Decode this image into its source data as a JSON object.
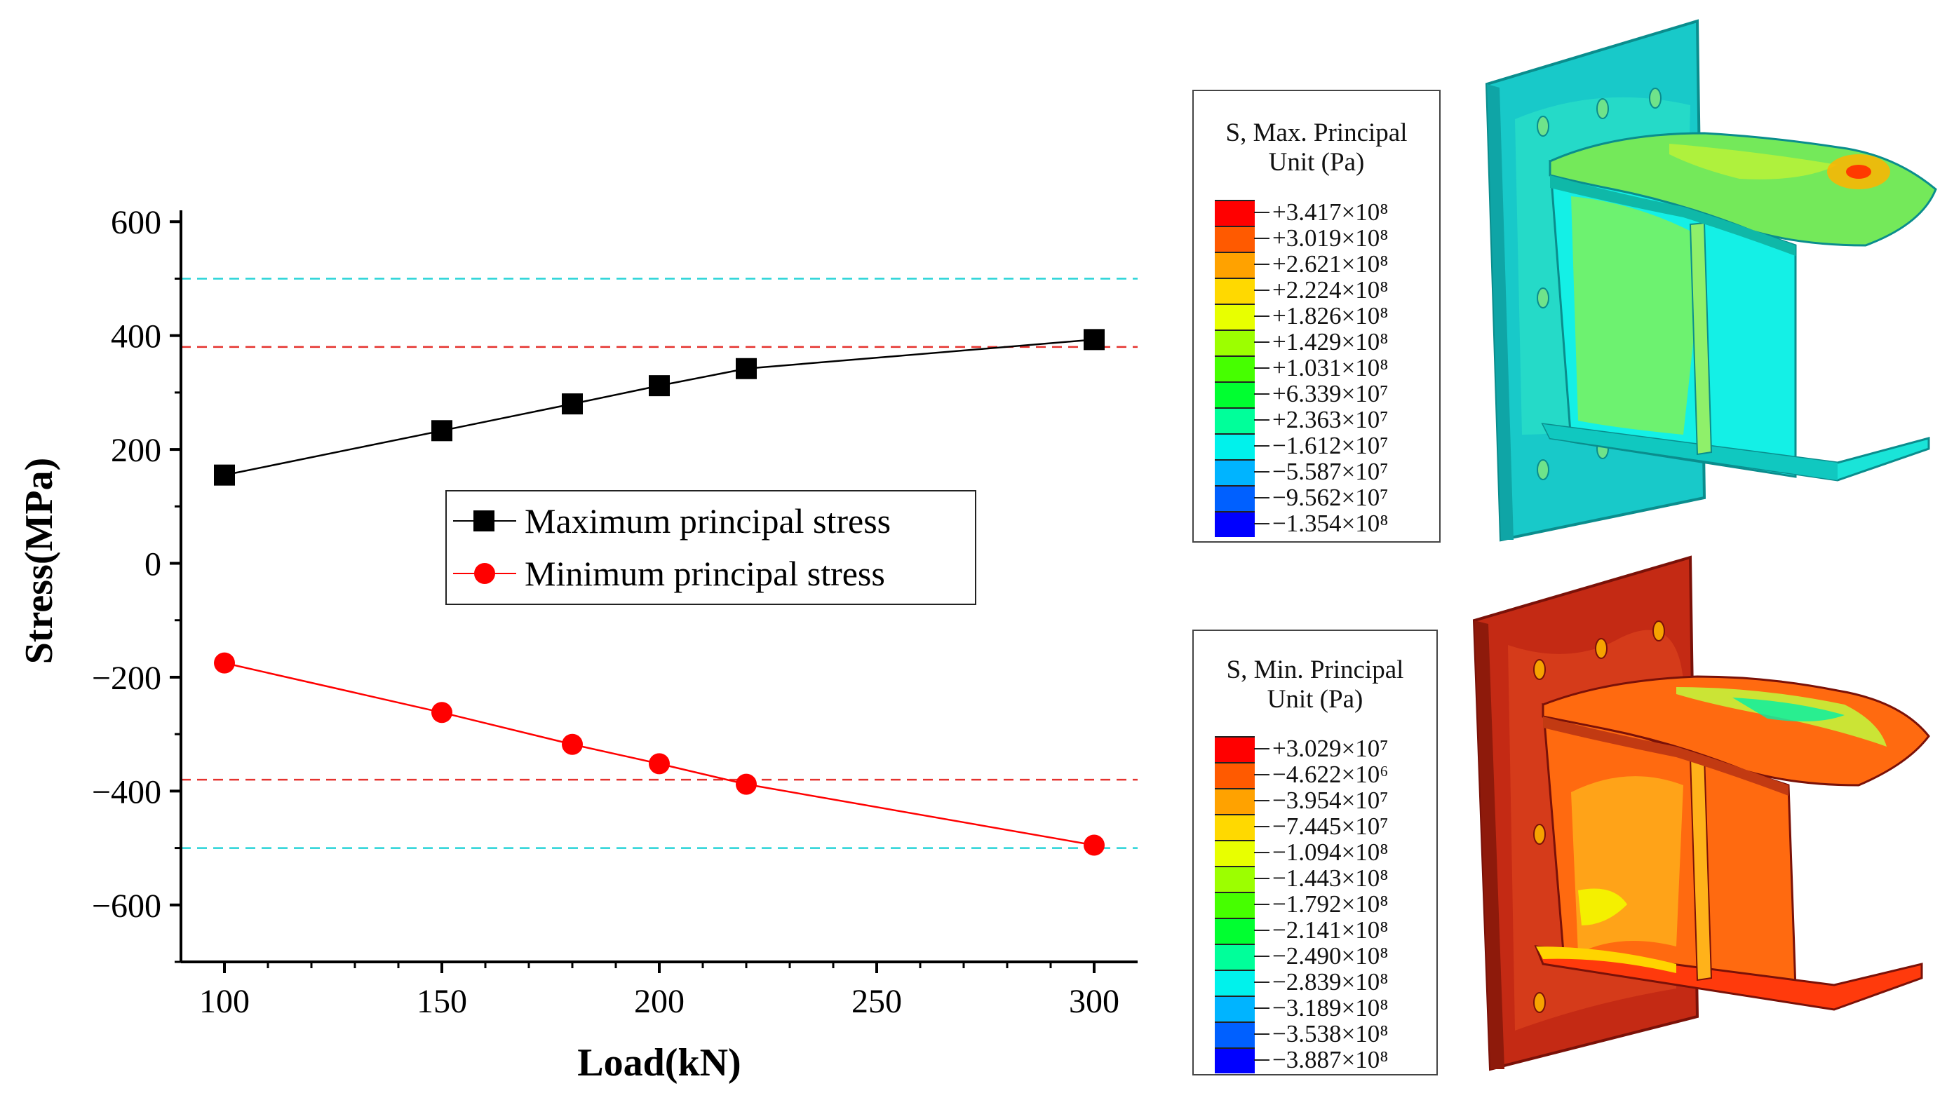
{
  "chart_data": {
    "type": "line",
    "title": "",
    "xlabel": "Load(kN)",
    "ylabel": "Stress(MPa)",
    "x": [
      100,
      150,
      180,
      200,
      220,
      300
    ],
    "xlim": [
      90,
      310
    ],
    "ylim": [
      -700,
      620
    ],
    "xticks": [
      100,
      150,
      200,
      250,
      300
    ],
    "yticks": [
      600,
      400,
      200,
      0,
      -200,
      -400,
      -600
    ],
    "xtick_labels": [
      "100",
      "150",
      "200",
      "250",
      "300"
    ],
    "ytick_labels": [
      "600",
      "400",
      "200",
      "0",
      "−200",
      "−400",
      "−600"
    ],
    "series": [
      {
        "name": "Maximum principal stress",
        "marker": "square",
        "color": "#000000",
        "values": [
          155,
          233,
          280,
          312,
          342,
          393
        ]
      },
      {
        "name": "Minimum principal stress",
        "marker": "circle",
        "color": "#ff0000",
        "values": [
          -175,
          -262,
          -318,
          -352,
          -388,
          -495
        ]
      }
    ],
    "reference_lines": [
      {
        "y": 500,
        "color": "#27d3d7",
        "style": "dashed"
      },
      {
        "y": 380,
        "color": "#e5322e",
        "style": "dashed"
      },
      {
        "y": -380,
        "color": "#e5322e",
        "style": "dashed"
      },
      {
        "y": -500,
        "color": "#27d3d7",
        "style": "dashed"
      }
    ],
    "legend_position": "center"
  },
  "contour_max": {
    "title_line1": "S, Max. Principal",
    "title_line2": "Unit  (Pa)",
    "labels": [
      "+3.417×10⁸",
      "+3.019×10⁸",
      "+2.621×10⁸",
      "+2.224×10⁸",
      "+1.826×10⁸",
      "+1.429×10⁸",
      "+1.031×10⁸",
      "+6.339×10⁷",
      "+2.363×10⁷",
      "−1.612×10⁷",
      "−5.587×10⁷",
      "−9.562×10⁷",
      "−1.354×10⁸"
    ],
    "colors": [
      "#ff0000",
      "#ff5a00",
      "#ffa200",
      "#ffd900",
      "#e8ff00",
      "#9cff00",
      "#46ff00",
      "#00ff30",
      "#00ff9a",
      "#00f2ec",
      "#00b4ff",
      "#0060ff",
      "#0000ff"
    ]
  },
  "contour_min": {
    "title_line1": "S, Min. Principal",
    "title_line2": "Unit  (Pa)",
    "labels": [
      "+3.029×10⁷",
      "−4.622×10⁶",
      "−3.954×10⁷",
      "−7.445×10⁷",
      "−1.094×10⁸",
      "−1.443×10⁸",
      "−1.792×10⁸",
      "−2.141×10⁸",
      "−2.490×10⁸",
      "−2.839×10⁸",
      "−3.189×10⁸",
      "−3.538×10⁸",
      "−3.887×10⁸"
    ],
    "colors": [
      "#ff0000",
      "#ff5a00",
      "#ffa200",
      "#ffd900",
      "#e8ff00",
      "#9cff00",
      "#46ff00",
      "#00ff30",
      "#00ff9a",
      "#00f2ec",
      "#00b4ff",
      "#0060ff",
      "#0000ff"
    ]
  }
}
